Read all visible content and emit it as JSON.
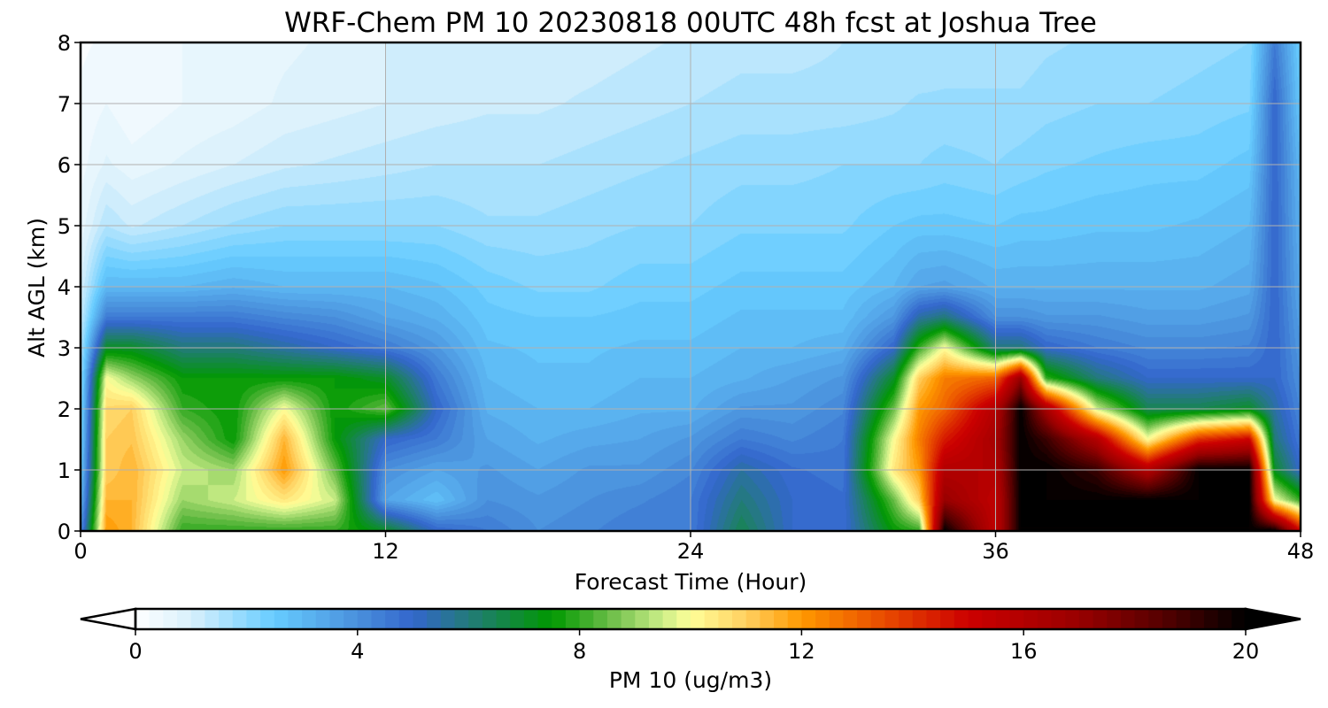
{
  "chart_data": {
    "type": "heatmap",
    "title": "WRF-Chem PM 10  20230818 00UTC 48h fcst at Joshua Tree",
    "xlabel": "Forecast Time (Hour)",
    "ylabel": "Alt AGL (km)",
    "xlim": [
      0,
      48
    ],
    "ylim": [
      0,
      8
    ],
    "xticks": [
      "0",
      "12",
      "24",
      "36",
      "48"
    ],
    "yticks": [
      "0",
      "1",
      "2",
      "3",
      "4",
      "5",
      "6",
      "7",
      "8"
    ],
    "grid": true,
    "colorbar": {
      "label": "PM 10  (ug/m3)",
      "range": [
        0,
        20
      ],
      "step": 0.25,
      "extend": "both",
      "ticks": [
        "0",
        "4",
        "8",
        "12",
        "16",
        "20"
      ],
      "placement": "bottom",
      "colors": [
        [
          0,
          "#ffffff"
        ],
        [
          1,
          "#d8f0fc"
        ],
        [
          2.5,
          "#66ccff"
        ],
        [
          4,
          "#4a90dc"
        ],
        [
          5,
          "#3366cc"
        ],
        [
          6,
          "#237a7a"
        ],
        [
          7.5,
          "#009900"
        ],
        [
          8.5,
          "#66bb44"
        ],
        [
          9.5,
          "#ccee88"
        ],
        [
          10,
          "#ffff99"
        ],
        [
          11,
          "#ffd060"
        ],
        [
          12,
          "#ff9900"
        ],
        [
          13.5,
          "#e84a00"
        ],
        [
          15,
          "#cc0000"
        ],
        [
          17,
          "#990000"
        ],
        [
          18.5,
          "#550000"
        ],
        [
          20,
          "#000000"
        ]
      ]
    },
    "x": [
      0,
      1,
      2,
      4,
      6,
      8,
      10,
      12,
      14,
      16,
      18,
      20,
      22,
      24,
      26,
      28,
      30,
      32,
      33,
      34,
      36,
      37,
      38,
      40,
      42,
      44,
      46,
      47,
      48
    ],
    "y": [
      0,
      0.5,
      1,
      1.5,
      2,
      2.5,
      3,
      3.5,
      4,
      5,
      6,
      7,
      8
    ],
    "z_by_hour": [
      [
        4,
        3,
        2.5,
        2.2,
        2,
        1.8,
        1.5,
        1.2,
        1,
        0.6,
        0.4,
        0.3,
        0.2
      ],
      [
        12,
        11.5,
        11,
        11,
        10.8,
        10,
        7,
        4.5,
        3,
        1.5,
        0.8,
        0.5,
        0.3
      ],
      [
        11.5,
        11.5,
        11.5,
        11.2,
        11,
        9,
        7,
        4.5,
        3,
        1.2,
        0.6,
        0.3,
        0.3
      ],
      [
        8,
        9,
        9.5,
        9,
        8,
        7.5,
        6,
        4.5,
        3,
        1.5,
        0.8,
        0.5,
        0.5
      ],
      [
        8,
        9.5,
        9,
        7.5,
        7.5,
        7.5,
        6,
        4.5,
        3.2,
        1.8,
        1,
        0.6,
        0.6
      ],
      [
        8,
        10.5,
        12,
        11.5,
        10,
        7.5,
        5.5,
        4.2,
        3,
        2,
        1.2,
        0.8,
        0.7
      ],
      [
        8,
        9.5,
        8.5,
        7.5,
        7.5,
        7.5,
        5,
        4,
        3,
        2,
        1.3,
        0.9,
        0.8
      ],
      [
        7,
        3.5,
        4,
        5,
        8.5,
        7,
        4.5,
        3.5,
        3,
        2,
        1.4,
        1,
        1
      ],
      [
        5,
        2.8,
        3.5,
        4.5,
        5,
        4.5,
        3.8,
        3.2,
        2.8,
        2,
        1.5,
        1.1,
        1
      ],
      [
        4.5,
        4,
        3.8,
        3.5,
        3.2,
        3,
        2.8,
        2.6,
        2.4,
        1.8,
        1.5,
        1.2,
        1
      ],
      [
        4,
        3.8,
        3.5,
        3.2,
        3,
        2.8,
        2.7,
        2.5,
        2.2,
        1.8,
        1.5,
        1.2,
        1.1
      ],
      [
        4.2,
        4,
        3.8,
        3.4,
        3,
        2.8,
        2.7,
        2.5,
        2.2,
        1.9,
        1.6,
        1.3,
        1.1
      ],
      [
        4.5,
        4.2,
        3.8,
        3.5,
        3.2,
        3,
        2.8,
        2.6,
        2.4,
        2,
        1.7,
        1.4,
        1.2
      ],
      [
        4.5,
        4.5,
        4.2,
        3.8,
        3.2,
        3,
        2.8,
        2.6,
        2.4,
        2,
        1.8,
        1.5,
        1.3
      ],
      [
        6.5,
        6,
        5.5,
        4.5,
        3.8,
        3.2,
        3,
        2.8,
        2.6,
        2.2,
        1.9,
        1.6,
        1.4
      ],
      [
        5,
        5,
        4.8,
        4.2,
        3.8,
        3.5,
        3,
        2.8,
        2.6,
        2.2,
        1.9,
        1.6,
        1.4
      ],
      [
        4.8,
        4.8,
        4.6,
        4.5,
        4.2,
        3.8,
        3.2,
        2.8,
        2.6,
        2.2,
        2,
        1.6,
        1.5
      ],
      [
        7.5,
        8.5,
        10.5,
        10,
        8.5,
        7,
        5,
        3.8,
        3,
        2.5,
        2,
        1.7,
        1.5
      ],
      [
        8,
        11,
        12,
        12.5,
        12,
        11,
        8,
        5.5,
        3.5,
        2.6,
        2,
        1.8,
        1.5
      ],
      [
        20,
        17,
        16,
        14.5,
        13,
        12.5,
        10,
        6,
        3.6,
        2.6,
        2.1,
        1.8,
        1.6
      ],
      [
        15.5,
        15.5,
        16,
        16.5,
        16,
        13,
        6,
        4,
        3.2,
        2.5,
        2,
        1.8,
        1.6
      ],
      [
        20,
        20,
        20,
        20,
        20,
        17,
        6,
        4,
        3.2,
        2.6,
        2.1,
        1.8,
        1.6
      ],
      [
        20,
        20,
        20,
        19,
        16.5,
        8,
        5,
        3.8,
        3.2,
        2.6,
        2.2,
        1.9,
        1.7
      ],
      [
        20,
        20,
        19,
        16,
        9.5,
        6,
        4.5,
        3.8,
        3.2,
        2.7,
        2.3,
        2,
        1.8
      ],
      [
        20,
        20,
        16,
        10,
        6.5,
        5,
        4.2,
        3.6,
        3.2,
        2.7,
        2.4,
        2,
        1.8
      ],
      [
        20,
        20,
        20,
        14,
        6.5,
        5,
        4.2,
        3.6,
        3.2,
        2.8,
        2.4,
        2.1,
        1.9
      ],
      [
        20,
        20,
        20,
        15,
        7,
        5,
        4.3,
        3.8,
        3.4,
        3,
        2.6,
        2.2,
        2
      ],
      [
        20,
        10,
        7,
        6,
        5.5,
        5,
        5,
        5,
        5,
        5,
        5,
        5,
        4.5
      ],
      [
        15,
        8,
        5,
        4.5,
        4.2,
        4,
        3.8,
        3.6,
        3.4,
        3.2,
        3,
        2.6,
        2.4
      ]
    ]
  }
}
